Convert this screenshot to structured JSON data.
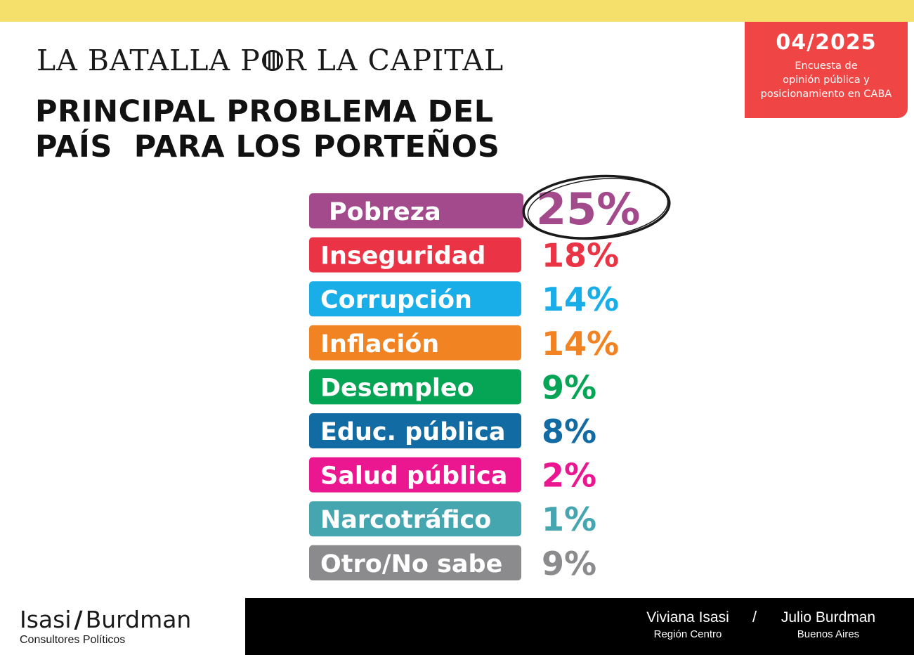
{
  "header": {
    "kicker_before": "LA BATALLA P",
    "kicker_after": "R LA CAPITAL",
    "title_line1": "PRINCIPAL PROBLEMA DEL",
    "title_line2": "PAÍS  PARA LOS PORTEÑOS"
  },
  "badge": {
    "date": "04/2025",
    "line1": "Encuesta de",
    "line2": "opinión pública y",
    "line3": "posicionamiento en CABA",
    "color": "#ef4545"
  },
  "chart_data": {
    "type": "bar",
    "categories": [
      "Pobreza",
      "Inseguridad",
      "Corrupción",
      "Inflación",
      "Desempleo",
      "Educ. pública",
      "Salud pública",
      "Narcotráfico",
      "Otro/No sabe"
    ],
    "values": [
      25,
      18,
      14,
      14,
      9,
      8,
      2,
      1,
      9
    ],
    "value_labels": [
      "25%",
      "18%",
      "14%",
      "14%",
      "9%",
      "8%",
      "2%",
      "1%",
      "9%"
    ],
    "colors": [
      "#a24a8c",
      "#ea3344",
      "#19aee8",
      "#f28323",
      "#06a455",
      "#126ba2",
      "#eb1790",
      "#46a6b0",
      "#8b8b8d"
    ],
    "highlight": "Pobreza"
  },
  "footer": {
    "brand_left": "Isasi",
    "brand_slash": "/",
    "brand_right": "Burdman",
    "brand_sub": "Consultores Políticos",
    "person1_name": "Viviana Isasi",
    "person1_role": "Región Centro",
    "separator": "/",
    "person2_name": "Julio Burdman",
    "person2_role": "Buenos Aires"
  }
}
